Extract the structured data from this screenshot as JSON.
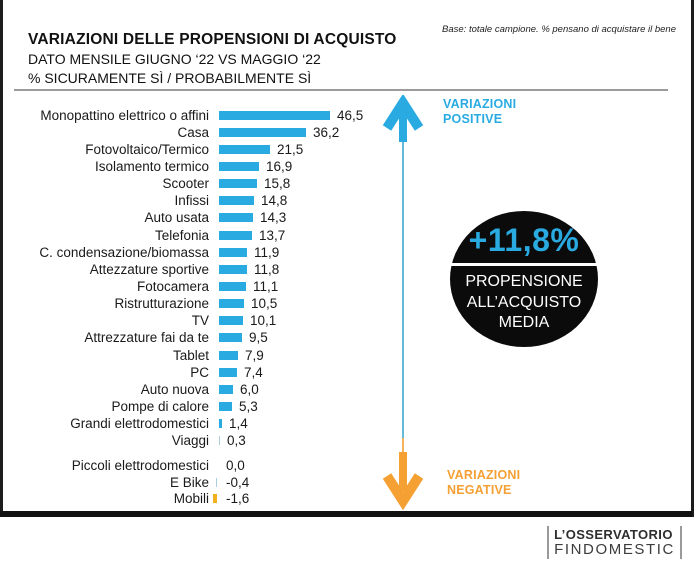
{
  "header": {
    "title": "VARIAZIONI DELLE PROPENSIONI DI ACQUISTO",
    "subtitle_line1": "DATO MENSILE GIUGNO ‘22 VS MAGGIO ‘22",
    "subtitle_line2": "% SICURAMENTE SÌ / PROBABILMENTE SÌ",
    "base_note": "Base: totale campione. % pensano di acquistare il bene"
  },
  "chart_data": {
    "type": "bar",
    "orientation": "horizontal",
    "title": "Variazioni delle propensioni di acquisto — dato mensile Giugno '22 vs Maggio '22 (% sicuramente sì / probabilmente sì)",
    "value_unit": "percentage points (Italian decimal comma)",
    "xlim": [
      -2,
      50
    ],
    "grid": false,
    "legend": false,
    "colors": {
      "bar": "#29ABE2",
      "muted": "#AACFDE",
      "negative": "#F2B01E"
    },
    "categories": [
      "Monopattino elettrico o affini",
      "Casa",
      "Fotovoltaico/Termico",
      "Isolamento termico",
      "Scooter",
      "Infissi",
      "Auto usata",
      "Telefonia",
      "C. condensazione/biomassa",
      "Attezzature sportive",
      "Fotocamera",
      "Ristrutturazione",
      "TV",
      "Attrezzature fai da te",
      "Tablet",
      "PC",
      "Auto nuova",
      "Pompe di calore",
      "Grandi elettrodomestici",
      "Viaggi",
      "Piccoli elettrodomestici",
      "E Bike",
      "Mobili"
    ],
    "values": [
      46.5,
      36.2,
      21.5,
      16.9,
      15.8,
      14.8,
      14.3,
      13.7,
      11.9,
      11.8,
      11.1,
      10.5,
      10.1,
      9.5,
      7.9,
      7.4,
      6.0,
      5.3,
      1.4,
      0.3,
      0.0,
      -0.4,
      -1.6
    ],
    "items": [
      {
        "label": "Monopattino elettrico o affini",
        "value": 46.5,
        "display": "46,5",
        "group": "positive",
        "color": "bar"
      },
      {
        "label": "Casa",
        "value": 36.2,
        "display": "36,2",
        "group": "positive",
        "color": "bar"
      },
      {
        "label": "Fotovoltaico/Termico",
        "value": 21.5,
        "display": "21,5",
        "group": "positive",
        "color": "bar"
      },
      {
        "label": "Isolamento termico",
        "value": 16.9,
        "display": "16,9",
        "group": "positive",
        "color": "bar"
      },
      {
        "label": "Scooter",
        "value": 15.8,
        "display": "15,8",
        "group": "positive",
        "color": "bar"
      },
      {
        "label": "Infissi",
        "value": 14.8,
        "display": "14,8",
        "group": "positive",
        "color": "bar"
      },
      {
        "label": "Auto usata",
        "value": 14.3,
        "display": "14,3",
        "group": "positive",
        "color": "bar"
      },
      {
        "label": "Telefonia",
        "value": 13.7,
        "display": "13,7",
        "group": "positive",
        "color": "bar"
      },
      {
        "label": "C. condensazione/biomassa",
        "value": 11.9,
        "display": "11,9",
        "group": "positive",
        "color": "bar"
      },
      {
        "label": "Attezzature sportive",
        "value": 11.8,
        "display": "11,8",
        "group": "positive",
        "color": "bar"
      },
      {
        "label": "Fotocamera",
        "value": 11.1,
        "display": "11,1",
        "group": "positive",
        "color": "bar"
      },
      {
        "label": "Ristrutturazione",
        "value": 10.5,
        "display": "10,5",
        "group": "positive",
        "color": "bar"
      },
      {
        "label": "TV",
        "value": 10.1,
        "display": "10,1",
        "group": "positive",
        "color": "bar"
      },
      {
        "label": "Attrezzature fai da te",
        "value": 9.5,
        "display": "9,5",
        "group": "positive",
        "color": "bar"
      },
      {
        "label": "Tablet",
        "value": 7.9,
        "display": "7,9",
        "group": "positive",
        "color": "bar"
      },
      {
        "label": "PC",
        "value": 7.4,
        "display": "7,4",
        "group": "positive",
        "color": "bar"
      },
      {
        "label": "Auto nuova",
        "value": 6.0,
        "display": "6,0",
        "group": "positive",
        "color": "bar"
      },
      {
        "label": "Pompe di calore",
        "value": 5.3,
        "display": "5,3",
        "group": "positive",
        "color": "bar"
      },
      {
        "label": "Grandi elettrodomestici",
        "value": 1.4,
        "display": "1,4",
        "group": "positive",
        "color": "bar"
      },
      {
        "label": "Viaggi",
        "value": 0.3,
        "display": "0,3",
        "group": "positive",
        "color": "muted"
      },
      {
        "label": "Piccoli elettrodomestici",
        "value": 0.0,
        "display": "0,0",
        "group": "negative",
        "color": "none"
      },
      {
        "label": "E Bike",
        "value": -0.4,
        "display": "-0,4",
        "group": "negative",
        "color": "muted"
      },
      {
        "label": "Mobili",
        "value": -1.6,
        "display": "-1,6",
        "group": "negative",
        "color": "negative"
      }
    ]
  },
  "annotations": {
    "positive": {
      "line1": "VARIAZIONI",
      "line2": "POSITIVE",
      "color": "#29ABE2"
    },
    "negative": {
      "line1": "VARIAZIONI",
      "line2": "NEGATIVE",
      "color": "#F5A033"
    },
    "badge": {
      "value": "+11,8%",
      "label_line1": "PROPENSIONE",
      "label_line2": "ALL’ACQUISTO",
      "label_line3": "MEDIA"
    }
  },
  "footer": {
    "logo_line1": "L’OSSERVATORIO",
    "logo_line2": "FINDOMESTIC"
  }
}
